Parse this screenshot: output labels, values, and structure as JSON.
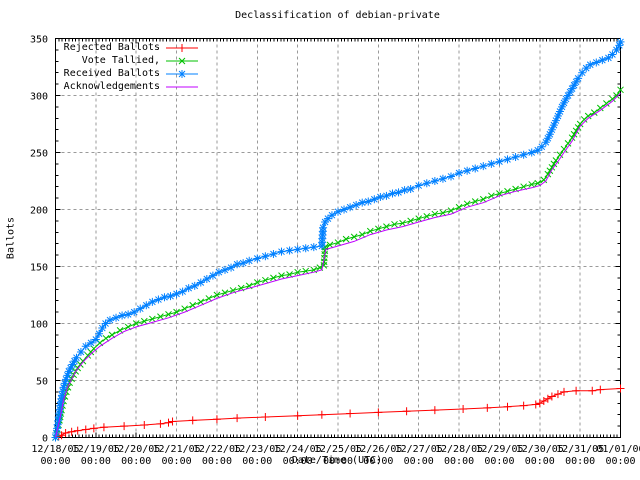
{
  "chart_data": {
    "type": "line",
    "title": "Declassification of debian-private",
    "xlabel": "Date/Time (UTC)",
    "ylabel": "Ballots",
    "xlim_days": [
      0,
      14
    ],
    "ylim": [
      0,
      350
    ],
    "y_ticks": [
      0,
      50,
      100,
      150,
      200,
      250,
      300,
      350
    ],
    "y_minor_step": 10,
    "x_minor_step_days": 0.0833333,
    "grid": true,
    "grid_color": "#9a9a9a",
    "legend_position": "top-left-inside",
    "x_tick_dates": [
      "12/18/05",
      "12/19/05",
      "12/20/05",
      "12/21/05",
      "12/22/05",
      "12/23/05",
      "12/24/05",
      "12/25/05",
      "12/26/05",
      "12/27/05",
      "12/28/05",
      "12/29/05",
      "12/30/05",
      "12/31/05",
      "01/01/06"
    ],
    "x_tick_time": "00:00",
    "series": [
      {
        "name": "Rejected Ballots",
        "color": "#ff0000",
        "marker": "plus",
        "marker_density": "vertices",
        "x_unit": "days_since_12/18/05_00:00",
        "points": [
          [
            0,
            0
          ],
          [
            0.08,
            1
          ],
          [
            0.15,
            2
          ],
          [
            0.25,
            4
          ],
          [
            0.4,
            5
          ],
          [
            0.55,
            6
          ],
          [
            0.75,
            7
          ],
          [
            0.95,
            8
          ],
          [
            1.2,
            9
          ],
          [
            1.7,
            10
          ],
          [
            2.2,
            11
          ],
          [
            2.6,
            12
          ],
          [
            2.8,
            13
          ],
          [
            2.9,
            14
          ],
          [
            3.4,
            15
          ],
          [
            4.0,
            16
          ],
          [
            4.5,
            17
          ],
          [
            5.2,
            18
          ],
          [
            6.0,
            19
          ],
          [
            6.6,
            20
          ],
          [
            7.3,
            21
          ],
          [
            8.0,
            22
          ],
          [
            8.7,
            23
          ],
          [
            9.4,
            24
          ],
          [
            10.1,
            25
          ],
          [
            10.7,
            26
          ],
          [
            11.2,
            27
          ],
          [
            11.6,
            28
          ],
          [
            11.9,
            29
          ],
          [
            12.0,
            30
          ],
          [
            12.1,
            32
          ],
          [
            12.2,
            34
          ],
          [
            12.3,
            36
          ],
          [
            12.45,
            38
          ],
          [
            12.6,
            40
          ],
          [
            12.9,
            41
          ],
          [
            13.3,
            41
          ],
          [
            13.5,
            42
          ],
          [
            14.0,
            43
          ]
        ]
      },
      {
        "name": "Vote Tallied,",
        "color": "#00c000",
        "marker": "cross",
        "marker_density": "dense",
        "x_unit": "days_since_12/18/05_00:00",
        "points": [
          [
            0,
            0
          ],
          [
            0.05,
            7
          ],
          [
            0.1,
            15
          ],
          [
            0.15,
            24
          ],
          [
            0.2,
            32
          ],
          [
            0.27,
            40
          ],
          [
            0.35,
            48
          ],
          [
            0.45,
            55
          ],
          [
            0.55,
            61
          ],
          [
            0.68,
            67
          ],
          [
            0.8,
            72
          ],
          [
            0.95,
            78
          ],
          [
            1.1,
            83
          ],
          [
            1.25,
            87
          ],
          [
            1.4,
            90
          ],
          [
            1.6,
            94
          ],
          [
            1.8,
            97
          ],
          [
            2.0,
            100
          ],
          [
            2.2,
            102
          ],
          [
            2.4,
            104
          ],
          [
            2.6,
            106
          ],
          [
            2.8,
            108
          ],
          [
            3.0,
            110
          ],
          [
            3.2,
            113
          ],
          [
            3.4,
            116
          ],
          [
            3.6,
            119
          ],
          [
            3.8,
            122
          ],
          [
            4.0,
            125
          ],
          [
            4.2,
            127
          ],
          [
            4.4,
            129
          ],
          [
            4.6,
            131
          ],
          [
            4.8,
            133
          ],
          [
            5.0,
            136
          ],
          [
            5.2,
            138
          ],
          [
            5.4,
            140
          ],
          [
            5.6,
            142
          ],
          [
            5.8,
            143
          ],
          [
            6.0,
            145
          ],
          [
            6.2,
            146
          ],
          [
            6.4,
            147
          ],
          [
            6.55,
            149
          ],
          [
            6.65,
            151
          ],
          [
            6.68,
            167
          ],
          [
            6.8,
            169
          ],
          [
            7.0,
            171
          ],
          [
            7.2,
            174
          ],
          [
            7.4,
            176
          ],
          [
            7.6,
            178
          ],
          [
            7.8,
            181
          ],
          [
            8.0,
            183
          ],
          [
            8.2,
            185
          ],
          [
            8.4,
            187
          ],
          [
            8.6,
            188
          ],
          [
            8.8,
            190
          ],
          [
            9.0,
            192
          ],
          [
            9.2,
            194
          ],
          [
            9.4,
            196
          ],
          [
            9.6,
            197
          ],
          [
            9.8,
            199
          ],
          [
            10.0,
            202
          ],
          [
            10.2,
            205
          ],
          [
            10.4,
            207
          ],
          [
            10.6,
            209
          ],
          [
            10.8,
            212
          ],
          [
            11.0,
            214
          ],
          [
            11.2,
            216
          ],
          [
            11.4,
            218
          ],
          [
            11.6,
            220
          ],
          [
            11.8,
            222
          ],
          [
            11.95,
            223
          ],
          [
            12.1,
            226
          ],
          [
            12.2,
            231
          ],
          [
            12.3,
            237
          ],
          [
            12.4,
            243
          ],
          [
            12.5,
            248
          ],
          [
            12.6,
            253
          ],
          [
            12.7,
            258
          ],
          [
            12.8,
            263
          ],
          [
            12.9,
            269
          ],
          [
            13.0,
            275
          ],
          [
            13.1,
            279
          ],
          [
            13.2,
            282
          ],
          [
            13.35,
            285
          ],
          [
            13.5,
            289
          ],
          [
            13.65,
            293
          ],
          [
            13.8,
            297
          ],
          [
            13.9,
            300
          ],
          [
            14.0,
            305
          ]
        ]
      },
      {
        "name": "Received Ballots",
        "color": "#0080ff",
        "marker": "star",
        "marker_density": "dense",
        "x_unit": "days_since_12/18/05_00:00",
        "points": [
          [
            0,
            0
          ],
          [
            0.04,
            8
          ],
          [
            0.08,
            18
          ],
          [
            0.12,
            28
          ],
          [
            0.16,
            37
          ],
          [
            0.2,
            44
          ],
          [
            0.26,
            51
          ],
          [
            0.33,
            58
          ],
          [
            0.42,
            64
          ],
          [
            0.52,
            70
          ],
          [
            0.63,
            75
          ],
          [
            0.75,
            80
          ],
          [
            0.88,
            83
          ],
          [
            1.0,
            86
          ],
          [
            1.08,
            91
          ],
          [
            1.16,
            96
          ],
          [
            1.24,
            100
          ],
          [
            1.35,
            103
          ],
          [
            1.5,
            105
          ],
          [
            1.65,
            107
          ],
          [
            1.8,
            108
          ],
          [
            1.95,
            110
          ],
          [
            2.1,
            113
          ],
          [
            2.25,
            116
          ],
          [
            2.4,
            119
          ],
          [
            2.55,
            121
          ],
          [
            2.7,
            123
          ],
          [
            2.85,
            124
          ],
          [
            3.0,
            126
          ],
          [
            3.15,
            128
          ],
          [
            3.3,
            131
          ],
          [
            3.45,
            133
          ],
          [
            3.6,
            136
          ],
          [
            3.75,
            139
          ],
          [
            3.9,
            142
          ],
          [
            4.05,
            145
          ],
          [
            4.2,
            147
          ],
          [
            4.35,
            149
          ],
          [
            4.5,
            152
          ],
          [
            4.65,
            153
          ],
          [
            4.8,
            155
          ],
          [
            5.0,
            157
          ],
          [
            5.2,
            159
          ],
          [
            5.4,
            161
          ],
          [
            5.6,
            163
          ],
          [
            5.8,
            164
          ],
          [
            6.0,
            165
          ],
          [
            6.2,
            166
          ],
          [
            6.4,
            167
          ],
          [
            6.6,
            168
          ],
          [
            6.63,
            184
          ],
          [
            6.68,
            189
          ],
          [
            6.75,
            192
          ],
          [
            6.85,
            195
          ],
          [
            7.0,
            198
          ],
          [
            7.15,
            200
          ],
          [
            7.3,
            202
          ],
          [
            7.45,
            204
          ],
          [
            7.6,
            206
          ],
          [
            7.75,
            207
          ],
          [
            7.9,
            209
          ],
          [
            8.05,
            211
          ],
          [
            8.2,
            212
          ],
          [
            8.35,
            214
          ],
          [
            8.5,
            215
          ],
          [
            8.65,
            217
          ],
          [
            8.8,
            218
          ],
          [
            9.0,
            221
          ],
          [
            9.2,
            223
          ],
          [
            9.4,
            225
          ],
          [
            9.6,
            227
          ],
          [
            9.8,
            229
          ],
          [
            10.0,
            232
          ],
          [
            10.2,
            234
          ],
          [
            10.4,
            236
          ],
          [
            10.6,
            238
          ],
          [
            10.8,
            240
          ],
          [
            11.0,
            242
          ],
          [
            11.2,
            244
          ],
          [
            11.4,
            246
          ],
          [
            11.6,
            248
          ],
          [
            11.8,
            250
          ],
          [
            11.95,
            252
          ],
          [
            12.05,
            255
          ],
          [
            12.15,
            259
          ],
          [
            12.25,
            266
          ],
          [
            12.35,
            274
          ],
          [
            12.45,
            282
          ],
          [
            12.55,
            290
          ],
          [
            12.65,
            297
          ],
          [
            12.75,
            303
          ],
          [
            12.85,
            309
          ],
          [
            12.95,
            315
          ],
          [
            13.05,
            320
          ],
          [
            13.15,
            324
          ],
          [
            13.25,
            327
          ],
          [
            13.4,
            329
          ],
          [
            13.55,
            331
          ],
          [
            13.7,
            333
          ],
          [
            13.8,
            336
          ],
          [
            13.9,
            340
          ],
          [
            13.97,
            344
          ],
          [
            14.0,
            347
          ]
        ]
      },
      {
        "name": "Acknowledgements",
        "color": "#c000ff",
        "marker": "none",
        "marker_density": "none",
        "x_unit": "days_since_12/18/05_00:00",
        "points": [
          [
            0,
            0
          ],
          [
            0.1,
            15
          ],
          [
            0.2,
            33
          ],
          [
            0.3,
            44
          ],
          [
            0.5,
            58
          ],
          [
            0.7,
            67
          ],
          [
            0.9,
            74
          ],
          [
            1.1,
            80
          ],
          [
            1.4,
            87
          ],
          [
            1.7,
            93
          ],
          [
            2.0,
            97
          ],
          [
            2.4,
            101
          ],
          [
            2.8,
            105
          ],
          [
            3.2,
            110
          ],
          [
            3.6,
            116
          ],
          [
            4.0,
            122
          ],
          [
            4.4,
            127
          ],
          [
            4.8,
            131
          ],
          [
            5.2,
            135
          ],
          [
            5.6,
            139
          ],
          [
            6.0,
            142
          ],
          [
            6.4,
            145
          ],
          [
            6.6,
            147
          ],
          [
            6.7,
            165
          ],
          [
            7.0,
            168
          ],
          [
            7.4,
            172
          ],
          [
            7.8,
            178
          ],
          [
            8.2,
            182
          ],
          [
            8.6,
            185
          ],
          [
            9.0,
            189
          ],
          [
            9.4,
            193
          ],
          [
            9.8,
            196
          ],
          [
            10.2,
            202
          ],
          [
            10.6,
            206
          ],
          [
            11.0,
            212
          ],
          [
            11.4,
            216
          ],
          [
            11.8,
            219
          ],
          [
            12.0,
            221
          ],
          [
            12.15,
            225
          ],
          [
            12.3,
            235
          ],
          [
            12.45,
            242
          ],
          [
            12.6,
            250
          ],
          [
            12.8,
            260
          ],
          [
            13.0,
            273
          ],
          [
            13.2,
            280
          ],
          [
            13.5,
            287
          ],
          [
            13.8,
            295
          ],
          [
            14.0,
            302
          ]
        ]
      }
    ]
  }
}
